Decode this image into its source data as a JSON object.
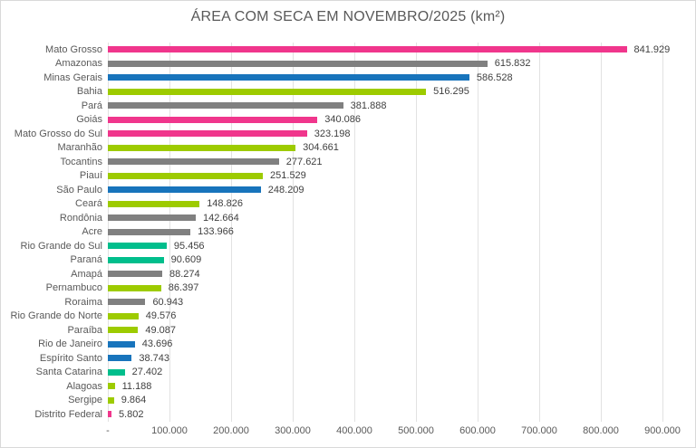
{
  "chart_data": {
    "type": "bar",
    "orientation": "horizontal",
    "title": "ÁREA COM SECA EM NOVEMBRO/2025 (km²)",
    "categories": [
      "Mato Grosso",
      "Amazonas",
      "Minas Gerais",
      "Bahia",
      "Pará",
      "Goiás",
      "Mato Grosso do Sul",
      "Maranhão",
      "Tocantins",
      "Piauí",
      "São Paulo",
      "Ceará",
      "Rondônia",
      "Acre",
      "Rio Grande do Sul",
      "Paraná",
      "Amapá",
      "Pernambuco",
      "Roraima",
      "Rio Grande do Norte",
      "Paraíba",
      "Rio de Janeiro",
      "Espírito Santo",
      "Santa Catarina",
      "Alagoas",
      "Sergipe",
      "Distrito Federal"
    ],
    "values": [
      841929,
      615832,
      586528,
      516295,
      381888,
      340086,
      323198,
      304661,
      277621,
      251529,
      248209,
      148826,
      142664,
      133966,
      95456,
      90609,
      88274,
      86397,
      60943,
      49576,
      49087,
      43696,
      38743,
      27402,
      11188,
      9864,
      5802
    ],
    "value_labels": [
      "841.929",
      "615.832",
      "586.528",
      "516.295",
      "381.888",
      "340.086",
      "323.198",
      "304.661",
      "277.621",
      "251.529",
      "248.209",
      "148.826",
      "142.664",
      "133.966",
      "95.456",
      "90.609",
      "88.274",
      "86.397",
      "60.943",
      "49.576",
      "49.087",
      "43.696",
      "38.743",
      "27.402",
      "11.188",
      "9.864",
      "5.802"
    ],
    "bar_colors": [
      "#f0368c",
      "#808080",
      "#1874bc",
      "#9dcb00",
      "#808080",
      "#f0368c",
      "#f0368c",
      "#9dcb00",
      "#808080",
      "#9dcb00",
      "#1874bc",
      "#9dcb00",
      "#808080",
      "#808080",
      "#00be8c",
      "#00be8c",
      "#808080",
      "#9dcb00",
      "#808080",
      "#9dcb00",
      "#9dcb00",
      "#1874bc",
      "#1874bc",
      "#00be8c",
      "#9dcb00",
      "#9dcb00",
      "#f0368c"
    ],
    "color_palette": {
      "pink": "#f0368c",
      "gray": "#808080",
      "blue": "#1874bc",
      "green": "#9dcb00",
      "teal": "#00be8c"
    },
    "xlabel": "",
    "ylabel": "",
    "xlim": [
      0,
      900000
    ],
    "x_ticks": [
      "-",
      "100.000",
      "200.000",
      "300.000",
      "400.000",
      "500.000",
      "600.000",
      "700.000",
      "800.000",
      "900.000"
    ],
    "x_tick_values": [
      0,
      100000,
      200000,
      300000,
      400000,
      500000,
      600000,
      700000,
      800000,
      900000
    ],
    "grid": "vertical",
    "gridline_color": "#e2e2e2",
    "legend": "none",
    "title_color": "#595959",
    "label_color": "#595959",
    "value_label_color": "#404040"
  }
}
